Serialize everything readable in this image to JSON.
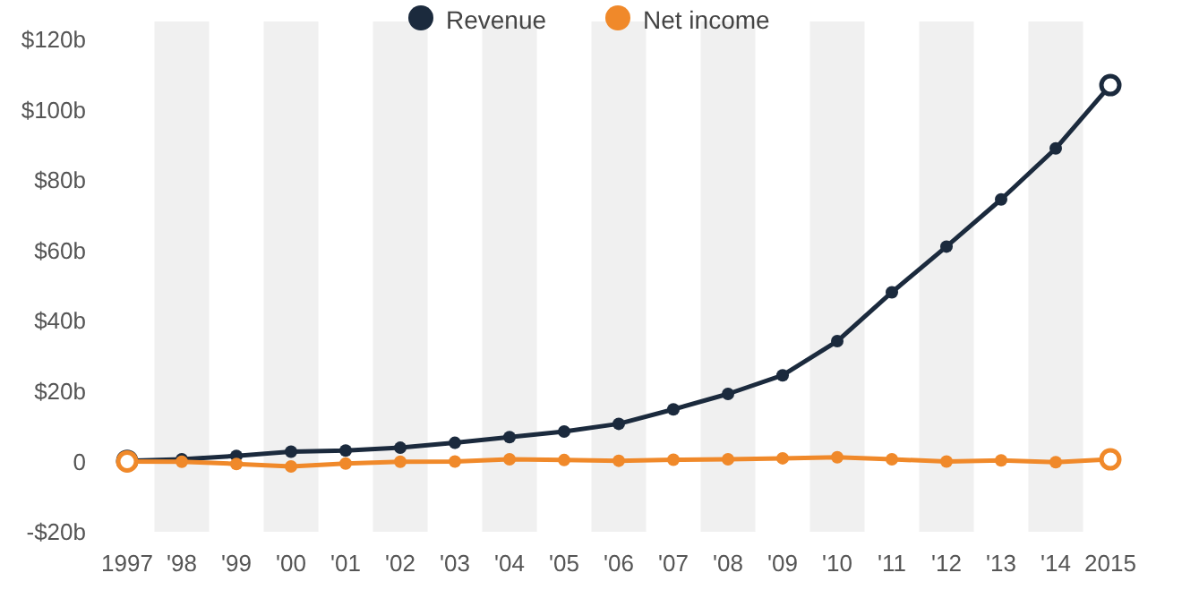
{
  "chart_data": {
    "type": "line",
    "categories": [
      "1997",
      "'98",
      "'99",
      "'00",
      "'01",
      "'02",
      "'03",
      "'04",
      "'05",
      "'06",
      "'07",
      "'08",
      "'09",
      "'10",
      "'11",
      "'12",
      "'13",
      "'14",
      "2015"
    ],
    "series": [
      {
        "name": "Revenue",
        "color": "#1b2a3d",
        "values": [
          0.2,
          0.6,
          1.6,
          2.8,
          3.1,
          3.9,
          5.3,
          6.9,
          8.5,
          10.7,
          14.8,
          19.2,
          24.5,
          34.2,
          48.1,
          61.1,
          74.5,
          89,
          107
        ]
      },
      {
        "name": "Net income",
        "color": "#f0892a",
        "values": [
          0,
          -0.1,
          -0.7,
          -1.4,
          -0.6,
          -0.1,
          0,
          0.6,
          0.4,
          0.2,
          0.5,
          0.6,
          0.9,
          1.2,
          0.6,
          0,
          0.3,
          -0.2,
          0.6
        ]
      }
    ],
    "ylim": [
      -20,
      120
    ],
    "yticks": [
      {
        "value": -20,
        "label": "-$20b"
      },
      {
        "value": 0,
        "label": "0"
      },
      {
        "value": 20,
        "label": "$20b"
      },
      {
        "value": 40,
        "label": "$40b"
      },
      {
        "value": 60,
        "label": "$60b"
      },
      {
        "value": 80,
        "label": "$80b"
      },
      {
        "value": 100,
        "label": "$100b"
      },
      {
        "value": 120,
        "label": "$120b"
      }
    ],
    "legend": "top",
    "marker": "circle",
    "line_style": "solid"
  }
}
